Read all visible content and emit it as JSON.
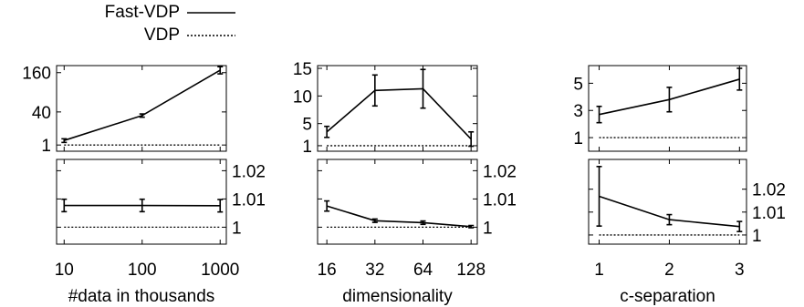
{
  "legend": {
    "fast_vdp_label": "Fast-VDP",
    "vdp_label": "VDP"
  },
  "chart_data": [
    {
      "type": "line",
      "panel": "data-size-top",
      "xlabel": "#data in thousands",
      "x_scale": "log",
      "x": [
        10,
        100,
        1000
      ],
      "xlim": [
        8,
        1200
      ],
      "x_tick_labels": [
        "10",
        "100",
        "1000"
      ],
      "y_scale": "sqrt",
      "ylim": [
        0,
        190
      ],
      "y_ticks": [
        1,
        40,
        160
      ],
      "y_tick_labels": [
        "1",
        "40",
        "160"
      ],
      "y_tick_side": "left",
      "series": [
        {
          "name": "Fast-VDP",
          "style": "solid",
          "values": [
            3,
            33,
            170
          ],
          "errors": [
            1,
            3,
            15
          ]
        },
        {
          "name": "VDP",
          "style": "dotted",
          "values": [
            1,
            1,
            1
          ]
        }
      ],
      "grid": false
    },
    {
      "type": "line",
      "panel": "data-size-bottom",
      "x_scale": "log",
      "x": [
        10,
        100,
        1000
      ],
      "xlim": [
        8,
        1200
      ],
      "ylim": [
        0.994,
        1.024
      ],
      "y_ticks": [
        1,
        1.01,
        1.02
      ],
      "y_tick_labels": [
        "1",
        "1.01",
        "1.02"
      ],
      "y_tick_side": "right",
      "series": [
        {
          "name": "Fast-VDP",
          "style": "solid",
          "values": [
            1.0077,
            1.0077,
            1.0076
          ],
          "errors": [
            0.0022,
            0.0022,
            0.0022
          ]
        },
        {
          "name": "VDP",
          "style": "dotted",
          "values": [
            1,
            1,
            1
          ]
        }
      ],
      "grid": false
    },
    {
      "type": "line",
      "panel": "dimensionality-top",
      "xlabel": "dimensionality",
      "x_scale": "log2",
      "x": [
        16,
        32,
        64,
        128
      ],
      "xlim": [
        14,
        140
      ],
      "x_tick_labels": [
        "16",
        "32",
        "64",
        "128"
      ],
      "y_scale": "linear",
      "ylim": [
        0,
        15.5
      ],
      "y_ticks": [
        1,
        5,
        10,
        15
      ],
      "y_tick_labels": [
        "1",
        "5",
        "10",
        "15"
      ],
      "y_tick_side": "left",
      "series": [
        {
          "name": "Fast-VDP",
          "style": "solid",
          "values": [
            3.5,
            11,
            11.3,
            2.2
          ],
          "errors": [
            1.0,
            2.8,
            3.5,
            1.3
          ]
        },
        {
          "name": "VDP",
          "style": "dotted",
          "values": [
            1,
            1,
            1,
            1
          ]
        }
      ],
      "grid": false
    },
    {
      "type": "line",
      "panel": "dimensionality-bottom",
      "x_scale": "log2",
      "x": [
        16,
        32,
        64,
        128
      ],
      "xlim": [
        14,
        140
      ],
      "ylim": [
        0.994,
        1.024
      ],
      "y_ticks": [
        1,
        1.01,
        1.02
      ],
      "y_tick_labels": [
        "1",
        "1.01",
        "1.02"
      ],
      "y_tick_side": "right",
      "series": [
        {
          "name": "Fast-VDP",
          "style": "solid",
          "values": [
            1.0075,
            1.0023,
            1.0016,
            1.0002
          ],
          "errors": [
            0.0018,
            0.0006,
            0.0006,
            0.0004
          ]
        },
        {
          "name": "VDP",
          "style": "dotted",
          "values": [
            1,
            1,
            1,
            1
          ]
        }
      ],
      "grid": false
    },
    {
      "type": "line",
      "panel": "c-separation-top",
      "xlabel": "c-separation",
      "x_scale": "linear",
      "x": [
        1,
        2,
        3
      ],
      "xlim": [
        0.85,
        3.1
      ],
      "x_tick_labels": [
        "1",
        "2",
        "3"
      ],
      "y_scale": "linear",
      "ylim": [
        0,
        6.3
      ],
      "y_ticks": [
        1,
        3,
        5
      ],
      "y_tick_labels": [
        "1",
        "3",
        "5"
      ],
      "y_tick_side": "left",
      "series": [
        {
          "name": "Fast-VDP",
          "style": "solid",
          "values": [
            2.7,
            3.8,
            5.3
          ],
          "errors": [
            0.6,
            0.9,
            0.8
          ]
        },
        {
          "name": "VDP",
          "style": "dotted",
          "values": [
            1,
            1,
            1
          ]
        }
      ],
      "grid": false
    },
    {
      "type": "line",
      "panel": "c-separation-bottom",
      "x_scale": "linear",
      "x": [
        1,
        2,
        3
      ],
      "xlim": [
        0.85,
        3.1
      ],
      "ylim": [
        0.996,
        1.033
      ],
      "y_ticks": [
        1,
        1.01,
        1.02
      ],
      "y_tick_labels": [
        "1",
        "1.01",
        "1.02"
      ],
      "y_tick_side": "right",
      "series": [
        {
          "name": "Fast-VDP",
          "style": "solid",
          "values": [
            1.0169,
            1.0067,
            1.0037
          ],
          "errors": [
            0.013,
            0.0022,
            0.0022
          ]
        },
        {
          "name": "VDP",
          "style": "dotted",
          "values": [
            1,
            1,
            1
          ]
        }
      ],
      "grid": false
    }
  ]
}
